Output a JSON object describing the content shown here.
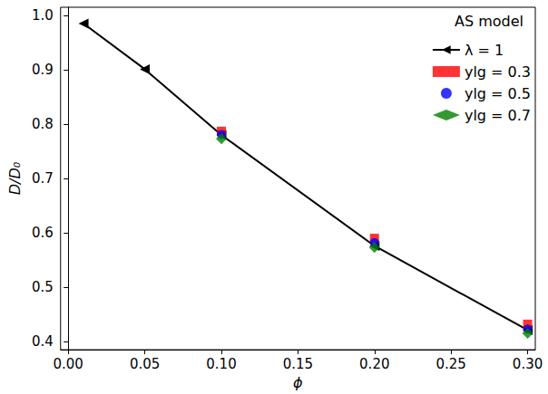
{
  "chart_data": {
    "type": "line",
    "x_label": "ϕ",
    "y_label": "D/D₀",
    "legend_title": "AS model",
    "legend": "upper right",
    "grid": false,
    "xlim": [
      -0.005,
      0.305
    ],
    "xticks": [
      {
        "value": 0,
        "label": "0.00"
      },
      {
        "value": 0.05,
        "label": "0.05"
      },
      {
        "value": 0.1,
        "label": "0.10"
      },
      {
        "value": 0.15,
        "label": "0.15"
      },
      {
        "value": 0.2,
        "label": "0.20"
      },
      {
        "value": 0.25,
        "label": "0.25"
      },
      {
        "value": 0.3,
        "label": "0.30"
      }
    ],
    "ylim": [
      0.385,
      1.015
    ],
    "yticks": [
      0.4,
      0.5,
      0.6,
      0.7,
      0.8,
      0.9,
      {
        "value": 1,
        "label": "1.0"
      }
    ],
    "series": [
      {
        "name": "λ = 1",
        "type": "line",
        "marker": "triangle-left",
        "line_style": "solid",
        "color": "#000000",
        "x": [
          0.01,
          0.05,
          0.1,
          0.2,
          0.3
        ],
        "values": [
          0.985,
          0.901,
          0.78,
          0.576,
          0.421
        ]
      },
      {
        "name": "ylg = 0.3",
        "type": "scatter",
        "marker": "square",
        "color": "#ff0000",
        "x": [
          0.1,
          0.2,
          0.3
        ],
        "values": [
          0.787,
          0.59,
          0.432
        ]
      },
      {
        "name": "ylg = 0.5",
        "type": "scatter",
        "marker": "circle",
        "color": "#0000ff",
        "x": [
          0.1,
          0.2,
          0.3
        ],
        "values": [
          0.781,
          0.582,
          0.423
        ]
      },
      {
        "name": "ylg = 0.7",
        "type": "scatter",
        "marker": "diamond",
        "color": "#008000",
        "x": [
          0.1,
          0.2,
          0.3
        ],
        "values": [
          0.773,
          0.573,
          0.415
        ]
      }
    ]
  }
}
